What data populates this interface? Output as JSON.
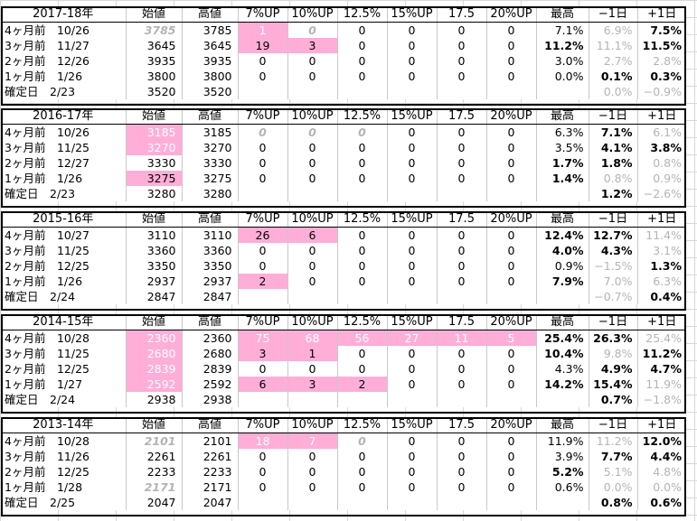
{
  "headers": [
    "始値",
    "高値",
    "7%UP",
    "10%UP",
    "12.5%",
    "15%UP",
    "17.5",
    "20%UP",
    "最高",
    "−1日",
    "+1日"
  ],
  "colors": {
    "highlight": "#ffaed7",
    "faint_text": "#b4b4b4",
    "border": "#000000"
  },
  "blocks": [
    {
      "season": "2017-18年",
      "rows": [
        {
          "label": "4ヶ月前　10/26",
          "cells": [
            {
              "v": "3785",
              "s": "g i"
            },
            {
              "v": "3785"
            },
            {
              "v": "1",
              "s": "pink w"
            },
            {
              "v": "0",
              "s": "g i"
            },
            {
              "v": "0"
            },
            {
              "v": "0"
            },
            {
              "v": "0"
            },
            {
              "v": "0"
            },
            {
              "v": "7.1%"
            },
            {
              "v": "6.9%",
              "s": "g"
            },
            {
              "v": "7.5%",
              "s": "b"
            }
          ]
        },
        {
          "label": "3ヶ月前　11/27",
          "cells": [
            {
              "v": "3645"
            },
            {
              "v": "3645"
            },
            {
              "v": "19",
              "s": "pink"
            },
            {
              "v": "3",
              "s": "pink"
            },
            {
              "v": "0"
            },
            {
              "v": "0"
            },
            {
              "v": "0"
            },
            {
              "v": "0"
            },
            {
              "v": "11.2%",
              "s": "b"
            },
            {
              "v": "11.1%",
              "s": "g"
            },
            {
              "v": "11.5%",
              "s": "b"
            }
          ]
        },
        {
          "label": "2ヶ月前　12/26",
          "cells": [
            {
              "v": "3935"
            },
            {
              "v": "3935"
            },
            {
              "v": "0"
            },
            {
              "v": "0"
            },
            {
              "v": "0"
            },
            {
              "v": "0"
            },
            {
              "v": "0"
            },
            {
              "v": "0"
            },
            {
              "v": "3.0%"
            },
            {
              "v": "2.7%",
              "s": "g"
            },
            {
              "v": "2.8%",
              "s": "g"
            }
          ]
        },
        {
          "label": "1ヶ月前　1/26",
          "cells": [
            {
              "v": "3800"
            },
            {
              "v": "3800"
            },
            {
              "v": "0"
            },
            {
              "v": "0"
            },
            {
              "v": "0"
            },
            {
              "v": "0"
            },
            {
              "v": "0"
            },
            {
              "v": "0"
            },
            {
              "v": "0.0%"
            },
            {
              "v": "0.1%",
              "s": "b"
            },
            {
              "v": "0.3%",
              "s": "b"
            }
          ]
        },
        {
          "label": "確定日　2/23",
          "cells": [
            {
              "v": "3520"
            },
            {
              "v": "3520"
            },
            {
              "v": ""
            },
            {
              "v": ""
            },
            {
              "v": ""
            },
            {
              "v": ""
            },
            {
              "v": ""
            },
            {
              "v": ""
            },
            {
              "v": ""
            },
            {
              "v": "0.0%",
              "s": "g"
            },
            {
              "v": "−0.9%",
              "s": "g"
            }
          ]
        }
      ]
    },
    {
      "season": "2016-17年",
      "rows": [
        {
          "label": "4ヶ月前　10/26",
          "cells": [
            {
              "v": "3185",
              "s": "pink w"
            },
            {
              "v": "3185"
            },
            {
              "v": "0",
              "s": "g i"
            },
            {
              "v": "0",
              "s": "g i"
            },
            {
              "v": "0",
              "s": "g i"
            },
            {
              "v": "0"
            },
            {
              "v": "0"
            },
            {
              "v": "0"
            },
            {
              "v": "6.3%"
            },
            {
              "v": "7.1%",
              "s": "b"
            },
            {
              "v": "6.1%",
              "s": "g"
            }
          ]
        },
        {
          "label": "3ヶ月前　11/25",
          "cells": [
            {
              "v": "3270",
              "s": "pink w"
            },
            {
              "v": "3270"
            },
            {
              "v": "0"
            },
            {
              "v": "0"
            },
            {
              "v": "0"
            },
            {
              "v": "0"
            },
            {
              "v": "0"
            },
            {
              "v": "0"
            },
            {
              "v": "3.5%"
            },
            {
              "v": "4.1%",
              "s": "b"
            },
            {
              "v": "3.8%",
              "s": "b"
            }
          ]
        },
        {
          "label": "2ヶ月前　12/27",
          "cells": [
            {
              "v": "3330"
            },
            {
              "v": "3330"
            },
            {
              "v": "0"
            },
            {
              "v": "0"
            },
            {
              "v": "0"
            },
            {
              "v": "0"
            },
            {
              "v": "0"
            },
            {
              "v": "0"
            },
            {
              "v": "1.7%",
              "s": "b"
            },
            {
              "v": "1.8%",
              "s": "b"
            },
            {
              "v": "0.8%",
              "s": "g"
            }
          ]
        },
        {
          "label": "1ヶ月前　1/26",
          "cells": [
            {
              "v": "3275",
              "s": "pink"
            },
            {
              "v": "3275"
            },
            {
              "v": "0"
            },
            {
              "v": "0"
            },
            {
              "v": "0"
            },
            {
              "v": "0"
            },
            {
              "v": "0"
            },
            {
              "v": "0"
            },
            {
              "v": "1.4%",
              "s": "b"
            },
            {
              "v": "0.8%",
              "s": "g"
            },
            {
              "v": "0.9%",
              "s": "g"
            }
          ]
        },
        {
          "label": "確定日　2/23",
          "cells": [
            {
              "v": "3280"
            },
            {
              "v": "3280"
            },
            {
              "v": ""
            },
            {
              "v": ""
            },
            {
              "v": ""
            },
            {
              "v": ""
            },
            {
              "v": ""
            },
            {
              "v": ""
            },
            {
              "v": ""
            },
            {
              "v": "1.2%",
              "s": "b"
            },
            {
              "v": "−2.6%",
              "s": "g"
            }
          ]
        }
      ]
    },
    {
      "season": "2015-16年",
      "rows": [
        {
          "label": "4ヶ月前　10/27",
          "cells": [
            {
              "v": "3110"
            },
            {
              "v": "3110"
            },
            {
              "v": "26",
              "s": "pink"
            },
            {
              "v": "6",
              "s": "pink"
            },
            {
              "v": "0"
            },
            {
              "v": "0"
            },
            {
              "v": "0"
            },
            {
              "v": "0"
            },
            {
              "v": "12.4%",
              "s": "b"
            },
            {
              "v": "12.7%",
              "s": "b"
            },
            {
              "v": "11.4%",
              "s": "g"
            }
          ]
        },
        {
          "label": "3ヶ月前　11/25",
          "cells": [
            {
              "v": "3360"
            },
            {
              "v": "3360"
            },
            {
              "v": "0"
            },
            {
              "v": "0"
            },
            {
              "v": "0"
            },
            {
              "v": "0"
            },
            {
              "v": "0"
            },
            {
              "v": "0"
            },
            {
              "v": "4.0%",
              "s": "b"
            },
            {
              "v": "4.3%",
              "s": "b"
            },
            {
              "v": "3.1%",
              "s": "g"
            }
          ]
        },
        {
          "label": "2ヶ月前　12/25",
          "cells": [
            {
              "v": "3350"
            },
            {
              "v": "3350"
            },
            {
              "v": "0"
            },
            {
              "v": "0"
            },
            {
              "v": "0"
            },
            {
              "v": "0"
            },
            {
              "v": "0"
            },
            {
              "v": "0"
            },
            {
              "v": "0.9%"
            },
            {
              "v": "−1.5%",
              "s": "g"
            },
            {
              "v": "1.3%",
              "s": "b"
            }
          ]
        },
        {
          "label": "1ヶ月前　1/26",
          "cells": [
            {
              "v": "2937"
            },
            {
              "v": "2937"
            },
            {
              "v": "2",
              "s": "pink"
            },
            {
              "v": "0"
            },
            {
              "v": "0"
            },
            {
              "v": "0"
            },
            {
              "v": "0"
            },
            {
              "v": "0"
            },
            {
              "v": "7.9%",
              "s": "b"
            },
            {
              "v": "7.0%",
              "s": "g"
            },
            {
              "v": "6.3%",
              "s": "g"
            }
          ]
        },
        {
          "label": "確定日　2/24",
          "cells": [
            {
              "v": "2847"
            },
            {
              "v": "2847"
            },
            {
              "v": ""
            },
            {
              "v": ""
            },
            {
              "v": ""
            },
            {
              "v": ""
            },
            {
              "v": ""
            },
            {
              "v": ""
            },
            {
              "v": ""
            },
            {
              "v": "−0.7%",
              "s": "g"
            },
            {
              "v": "0.4%",
              "s": "b"
            }
          ]
        }
      ]
    },
    {
      "season": "2014-15年",
      "rows": [
        {
          "label": "4ヶ月前　10/28",
          "cells": [
            {
              "v": "2360",
              "s": "pink w"
            },
            {
              "v": "2360"
            },
            {
              "v": "75",
              "s": "pink w"
            },
            {
              "v": "68",
              "s": "pink w"
            },
            {
              "v": "56",
              "s": "pink w"
            },
            {
              "v": "27",
              "s": "pink w"
            },
            {
              "v": "11",
              "s": "pink w"
            },
            {
              "v": "5",
              "s": "pink w"
            },
            {
              "v": "25.4%",
              "s": "b"
            },
            {
              "v": "26.3%",
              "s": "b"
            },
            {
              "v": "25.4%",
              "s": "g"
            }
          ]
        },
        {
          "label": "3ヶ月前　11/25",
          "cells": [
            {
              "v": "2680",
              "s": "pink w"
            },
            {
              "v": "2680"
            },
            {
              "v": "3",
              "s": "pink"
            },
            {
              "v": "1",
              "s": "pink"
            },
            {
              "v": "0"
            },
            {
              "v": "0"
            },
            {
              "v": "0"
            },
            {
              "v": "0"
            },
            {
              "v": "10.4%",
              "s": "b"
            },
            {
              "v": "9.8%",
              "s": "g"
            },
            {
              "v": "11.2%",
              "s": "b"
            }
          ]
        },
        {
          "label": "2ヶ月前　12/25",
          "cells": [
            {
              "v": "2839",
              "s": "pink w"
            },
            {
              "v": "2839"
            },
            {
              "v": "0"
            },
            {
              "v": "0"
            },
            {
              "v": "0"
            },
            {
              "v": "0"
            },
            {
              "v": "0"
            },
            {
              "v": "0"
            },
            {
              "v": "4.3%"
            },
            {
              "v": "4.9%",
              "s": "b"
            },
            {
              "v": "4.7%",
              "s": "b"
            }
          ]
        },
        {
          "label": "1ヶ月前　1/27",
          "cells": [
            {
              "v": "2592",
              "s": "pink w"
            },
            {
              "v": "2592"
            },
            {
              "v": "6",
              "s": "pink"
            },
            {
              "v": "3",
              "s": "pink"
            },
            {
              "v": "2",
              "s": "pink"
            },
            {
              "v": "0"
            },
            {
              "v": "0"
            },
            {
              "v": "0"
            },
            {
              "v": "14.2%",
              "s": "b"
            },
            {
              "v": "15.4%",
              "s": "b"
            },
            {
              "v": "11.9%",
              "s": "g"
            }
          ]
        },
        {
          "label": "確定日　2/24",
          "cells": [
            {
              "v": "2938"
            },
            {
              "v": "2938"
            },
            {
              "v": ""
            },
            {
              "v": ""
            },
            {
              "v": ""
            },
            {
              "v": ""
            },
            {
              "v": ""
            },
            {
              "v": ""
            },
            {
              "v": ""
            },
            {
              "v": "0.7%",
              "s": "b"
            },
            {
              "v": "−1.8%",
              "s": "g"
            }
          ]
        }
      ]
    },
    {
      "season": "2013-14年",
      "rows": [
        {
          "label": "4ヶ月前　10/28",
          "cells": [
            {
              "v": "2101",
              "s": "g i"
            },
            {
              "v": "2101"
            },
            {
              "v": "18",
              "s": "pink w"
            },
            {
              "v": "7",
              "s": "pink w"
            },
            {
              "v": "0",
              "s": "g i"
            },
            {
              "v": "0"
            },
            {
              "v": "0"
            },
            {
              "v": "0"
            },
            {
              "v": "11.9%"
            },
            {
              "v": "11.2%",
              "s": "g"
            },
            {
              "v": "12.0%",
              "s": "b"
            }
          ]
        },
        {
          "label": "3ヶ月前　11/26",
          "cells": [
            {
              "v": "2261"
            },
            {
              "v": "2261"
            },
            {
              "v": "0"
            },
            {
              "v": "0"
            },
            {
              "v": "0"
            },
            {
              "v": "0"
            },
            {
              "v": "0"
            },
            {
              "v": "0"
            },
            {
              "v": "3.9%"
            },
            {
              "v": "7.7%",
              "s": "b"
            },
            {
              "v": "4.4%",
              "s": "b"
            }
          ]
        },
        {
          "label": "2ヶ月前　12/25",
          "cells": [
            {
              "v": "2233"
            },
            {
              "v": "2233"
            },
            {
              "v": "0"
            },
            {
              "v": "0"
            },
            {
              "v": "0"
            },
            {
              "v": "0"
            },
            {
              "v": "0"
            },
            {
              "v": "0"
            },
            {
              "v": "5.2%",
              "s": "b"
            },
            {
              "v": "5.1%",
              "s": "g"
            },
            {
              "v": "4.8%",
              "s": "g"
            }
          ]
        },
        {
          "label": "1ヶ月前　1/28",
          "cells": [
            {
              "v": "2171",
              "s": "g i"
            },
            {
              "v": "2171"
            },
            {
              "v": "0"
            },
            {
              "v": "0"
            },
            {
              "v": "0"
            },
            {
              "v": "0"
            },
            {
              "v": "0"
            },
            {
              "v": "0"
            },
            {
              "v": "0.6%"
            },
            {
              "v": "0.0%",
              "s": "g"
            },
            {
              "v": "0.0%",
              "s": "g"
            }
          ]
        },
        {
          "label": "確定日　2/25",
          "cells": [
            {
              "v": "2047"
            },
            {
              "v": "2047"
            },
            {
              "v": ""
            },
            {
              "v": ""
            },
            {
              "v": ""
            },
            {
              "v": ""
            },
            {
              "v": ""
            },
            {
              "v": ""
            },
            {
              "v": ""
            },
            {
              "v": "0.8%",
              "s": "b"
            },
            {
              "v": "0.6%",
              "s": "b"
            }
          ]
        }
      ]
    }
  ]
}
